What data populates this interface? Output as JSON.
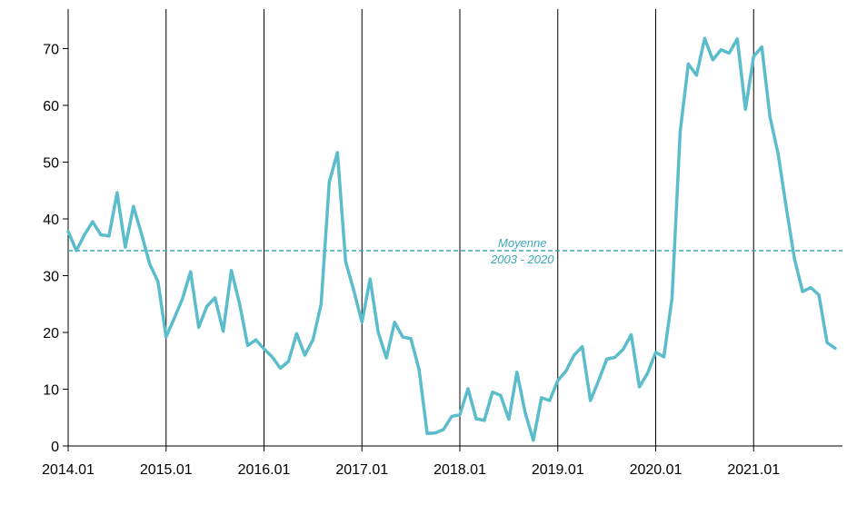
{
  "chart_data": {
    "type": "line",
    "title": "",
    "xlabel": "",
    "ylabel": "",
    "ylim": [
      0,
      75
    ],
    "yticks": [
      0,
      10,
      20,
      30,
      40,
      50,
      60,
      70
    ],
    "xlim": [
      "2014-01",
      "2021-12"
    ],
    "x_tick_labels": [
      "2014.01",
      "2015.01",
      "2016.01",
      "2017.01",
      "2018.01",
      "2019.01",
      "2020.01",
      "2021.01"
    ],
    "x_gridlines": "vertical at each January from 2015",
    "legend": "none",
    "series": [
      {
        "color": "#5bbccc",
        "points": [
          [
            "2014-01",
            37.8
          ],
          [
            "2014-02",
            34.4
          ],
          [
            "2014-03",
            37.2
          ],
          [
            "2014-04",
            39.5
          ],
          [
            "2014-05",
            37.2
          ],
          [
            "2014-06",
            37.0
          ],
          [
            "2014-07",
            44.6
          ],
          [
            "2014-08",
            35.0
          ],
          [
            "2014-09",
            42.2
          ],
          [
            "2014-10",
            37.3
          ],
          [
            "2014-11",
            32.0
          ],
          [
            "2014-12",
            29.0
          ],
          [
            "2015-01",
            19.2
          ],
          [
            "2015-02",
            22.5
          ],
          [
            "2015-03",
            25.9
          ],
          [
            "2015-04",
            30.7
          ],
          [
            "2015-05",
            20.9
          ],
          [
            "2015-06",
            24.6
          ],
          [
            "2015-07",
            26.1
          ],
          [
            "2015-08",
            20.2
          ],
          [
            "2015-09",
            30.9
          ],
          [
            "2015-10",
            25.1
          ],
          [
            "2015-11",
            17.7
          ],
          [
            "2015-12",
            18.7
          ],
          [
            "2016-01",
            17.1
          ],
          [
            "2016-02",
            15.7
          ],
          [
            "2016-03",
            13.7
          ],
          [
            "2016-04",
            14.9
          ],
          [
            "2016-05",
            19.8
          ],
          [
            "2016-06",
            16.0
          ],
          [
            "2016-07",
            18.7
          ],
          [
            "2016-08",
            25.0
          ],
          [
            "2016-09",
            46.5
          ],
          [
            "2016-10",
            51.7
          ],
          [
            "2016-11",
            32.5
          ],
          [
            "2016-12",
            27.4
          ],
          [
            "2017-01",
            21.8
          ],
          [
            "2017-02",
            29.4
          ],
          [
            "2017-03",
            20.0
          ],
          [
            "2017-04",
            15.5
          ],
          [
            "2017-05",
            21.8
          ],
          [
            "2017-06",
            19.2
          ],
          [
            "2017-07",
            18.9
          ],
          [
            "2017-08",
            13.5
          ],
          [
            "2017-09",
            2.2
          ],
          [
            "2017-10",
            2.3
          ],
          [
            "2017-11",
            2.9
          ],
          [
            "2017-12",
            5.2
          ],
          [
            "2018-01",
            5.5
          ],
          [
            "2018-02",
            10.1
          ],
          [
            "2018-03",
            4.8
          ],
          [
            "2018-04",
            4.5
          ],
          [
            "2018-05",
            9.5
          ],
          [
            "2018-06",
            8.9
          ],
          [
            "2018-07",
            4.7
          ],
          [
            "2018-08",
            13.0
          ],
          [
            "2018-09",
            5.9
          ],
          [
            "2018-10",
            1.0
          ],
          [
            "2018-11",
            8.5
          ],
          [
            "2018-12",
            8.0
          ],
          [
            "2019-01",
            11.5
          ],
          [
            "2019-02",
            13.2
          ],
          [
            "2019-03",
            16.0
          ],
          [
            "2019-04",
            17.5
          ],
          [
            "2019-05",
            8.0
          ],
          [
            "2019-06",
            11.5
          ],
          [
            "2019-07",
            15.3
          ],
          [
            "2019-08",
            15.6
          ],
          [
            "2019-09",
            17.0
          ],
          [
            "2019-10",
            19.6
          ],
          [
            "2019-11",
            10.4
          ],
          [
            "2019-12",
            12.8
          ],
          [
            "2020-01",
            16.5
          ],
          [
            "2020-02",
            15.7
          ],
          [
            "2020-03",
            26.0
          ],
          [
            "2020-04",
            55.4
          ],
          [
            "2020-05",
            67.3
          ],
          [
            "2020-06",
            65.3
          ],
          [
            "2020-07",
            71.8
          ],
          [
            "2020-08",
            68.0
          ],
          [
            "2020-09",
            69.8
          ],
          [
            "2020-10",
            69.2
          ],
          [
            "2020-11",
            71.7
          ],
          [
            "2020-12",
            59.3
          ],
          [
            "2021-01",
            68.6
          ],
          [
            "2021-02",
            70.3
          ],
          [
            "2021-03",
            58.0
          ],
          [
            "2021-04",
            51.5
          ],
          [
            "2021-05",
            42.0
          ],
          [
            "2021-06",
            33.0
          ],
          [
            "2021-07",
            27.2
          ],
          [
            "2021-08",
            27.9
          ],
          [
            "2021-09",
            26.6
          ],
          [
            "2021-10",
            18.2
          ],
          [
            "2021-11",
            17.2
          ]
        ]
      }
    ],
    "reference_line": {
      "value": 34.4,
      "color": "#3aa8b8",
      "style": "dashed",
      "label_line1": "Moyenne",
      "label_line2": "2003 - 2020"
    }
  }
}
